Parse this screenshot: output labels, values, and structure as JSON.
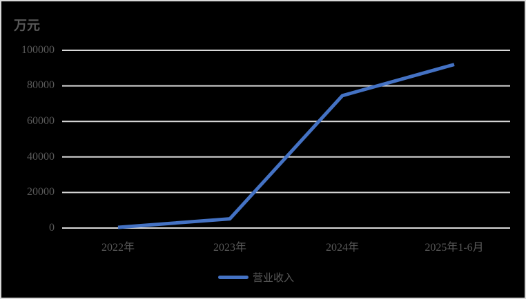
{
  "chart_data": {
    "type": "line",
    "title": "",
    "ylabel": "万元",
    "xlabel": "",
    "categories": [
      "2022年",
      "2023年",
      "2024年",
      "2025年1-6月"
    ],
    "series": [
      {
        "name": "营业收入",
        "color": "#4472c4",
        "values": [
          400,
          5200,
          74500,
          92000
        ]
      }
    ],
    "ylim": [
      0,
      100000
    ],
    "yticks": [
      "0",
      "20000",
      "40000",
      "60000",
      "80000",
      "100000"
    ],
    "grid": true,
    "legend_position": "bottom",
    "background": "#000000",
    "gridline_color": "#d9d9d9",
    "text_color": "#595959"
  }
}
